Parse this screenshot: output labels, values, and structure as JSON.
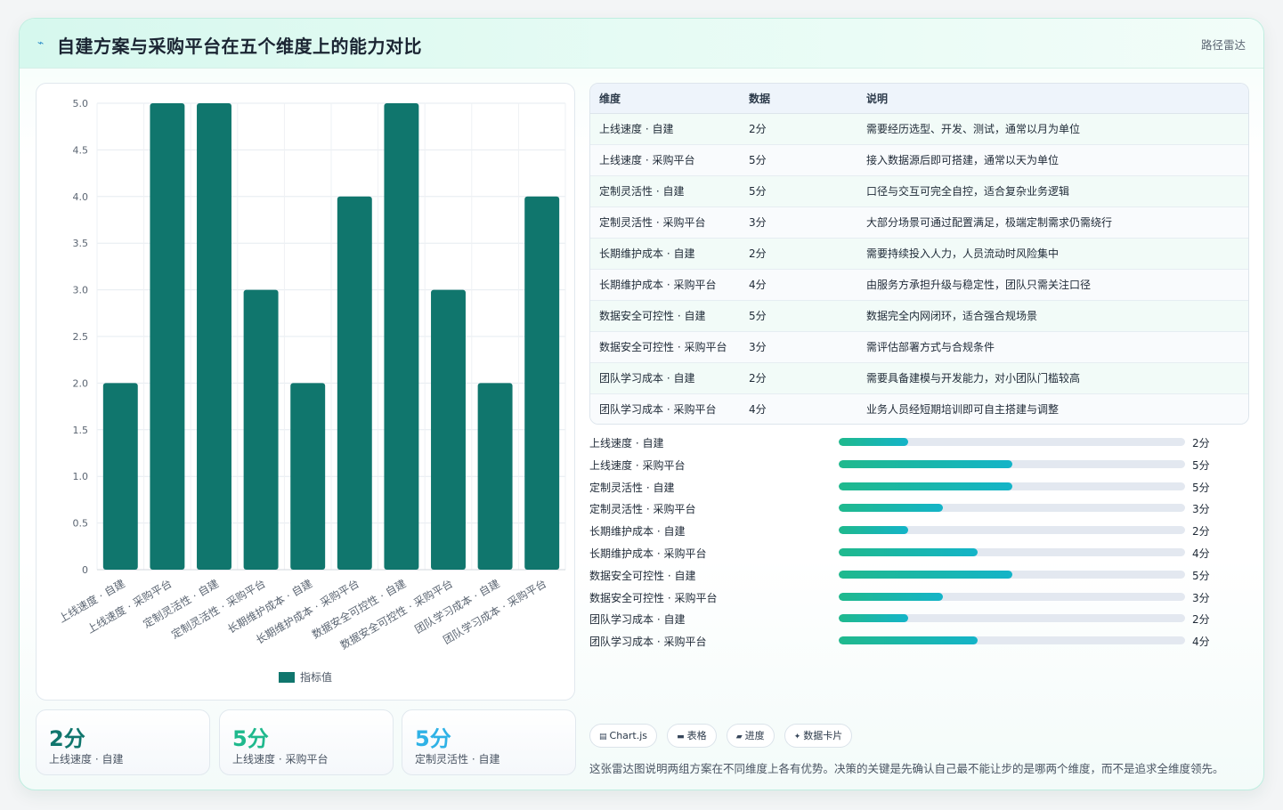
{
  "header": {
    "title": "自建方案与采购平台在五个维度上的能力对比",
    "tag": "路径雷达",
    "icon": "line-chart-icon"
  },
  "chart_data": {
    "type": "bar",
    "categories": [
      "上线速度 · 自建",
      "上线速度 · 采购平台",
      "定制灵活性 · 自建",
      "定制灵活性 · 采购平台",
      "长期维护成本 · 自建",
      "长期维护成本 · 采购平台",
      "数据安全可控性 · 自建",
      "数据安全可控性 · 采购平台",
      "团队学习成本 · 自建",
      "团队学习成本 · 采购平台"
    ],
    "series": [
      {
        "name": "指标值",
        "values": [
          2,
          5,
          5,
          3,
          2,
          4,
          5,
          3,
          2,
          4
        ],
        "color": "#10766d"
      }
    ],
    "ylim": [
      0,
      5
    ],
    "yticks": [
      "0",
      "0.5",
      "1.0",
      "1.5",
      "2.0",
      "2.5",
      "3.0",
      "3.5",
      "4.0",
      "4.5",
      "5.0"
    ],
    "grid": true,
    "legend": "bottom"
  },
  "stats": [
    {
      "value": "2分",
      "caption": "上线速度 · 自建",
      "color": "#10766d"
    },
    {
      "value": "5分",
      "caption": "上线速度 · 采购平台",
      "color": "#1fb98d"
    },
    {
      "value": "5分",
      "caption": "定制灵活性 · 自建",
      "color": "#2fb2e6"
    }
  ],
  "table": {
    "headers": [
      "维度",
      "数据",
      "说明"
    ],
    "rows": [
      [
        "上线速度 · 自建",
        "2分",
        "需要经历选型、开发、测试，通常以月为单位"
      ],
      [
        "上线速度 · 采购平台",
        "5分",
        "接入数据源后即可搭建，通常以天为单位"
      ],
      [
        "定制灵活性 · 自建",
        "5分",
        "口径与交互可完全自控，适合复杂业务逻辑"
      ],
      [
        "定制灵活性 · 采购平台",
        "3分",
        "大部分场景可通过配置满足，极端定制需求仍需绕行"
      ],
      [
        "长期维护成本 · 自建",
        "2分",
        "需要持续投入人力，人员流动时风险集中"
      ],
      [
        "长期维护成本 · 采购平台",
        "4分",
        "由服务方承担升级与稳定性，团队只需关注口径"
      ],
      [
        "数据安全可控性 · 自建",
        "5分",
        "数据完全内网闭环，适合强合规场景"
      ],
      [
        "数据安全可控性 · 采购平台",
        "3分",
        "需评估部署方式与合规条件"
      ],
      [
        "团队学习成本 · 自建",
        "2分",
        "需要具备建模与开发能力，对小团队门槛较高"
      ],
      [
        "团队学习成本 · 采购平台",
        "4分",
        "业务人员经短期培训即可自主搭建与调整"
      ]
    ]
  },
  "progress": {
    "max": 10,
    "items": [
      {
        "label": "上线速度 · 自建",
        "value": 2,
        "text": "2分"
      },
      {
        "label": "上线速度 · 采购平台",
        "value": 5,
        "text": "5分"
      },
      {
        "label": "定制灵活性 · 自建",
        "value": 5,
        "text": "5分"
      },
      {
        "label": "定制灵活性 · 采购平台",
        "value": 3,
        "text": "3分"
      },
      {
        "label": "长期维护成本 · 自建",
        "value": 2,
        "text": "2分"
      },
      {
        "label": "长期维护成本 · 采购平台",
        "value": 4,
        "text": "4分"
      },
      {
        "label": "数据安全可控性 · 自建",
        "value": 5,
        "text": "5分"
      },
      {
        "label": "数据安全可控性 · 采购平台",
        "value": 3,
        "text": "3分"
      },
      {
        "label": "团队学习成本 · 自建",
        "value": 2,
        "text": "2分"
      },
      {
        "label": "团队学习成本 · 采购平台",
        "value": 4,
        "text": "4分"
      }
    ]
  },
  "pills": [
    {
      "icon": "chart-icon",
      "glyph": "▤",
      "label": "Chart.js"
    },
    {
      "icon": "table-icon",
      "glyph": "▬",
      "label": "表格"
    },
    {
      "icon": "progress-icon",
      "glyph": "▰",
      "label": "进度"
    },
    {
      "icon": "card-icon",
      "glyph": "✦",
      "label": "数据卡片"
    }
  ],
  "note": "这张雷达图说明两组方案在不同维度上各有优势。决策的关键是先确认自己最不能让步的是哪两个维度，而不是追求全维度领先。"
}
